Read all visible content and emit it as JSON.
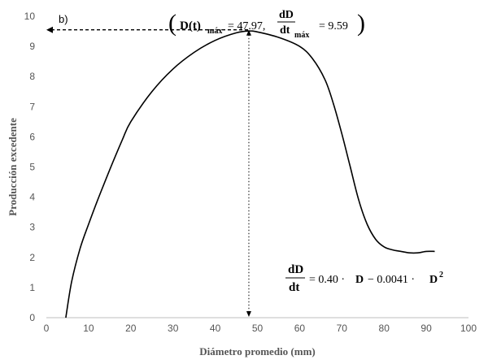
{
  "chart_data": {
    "type": "line",
    "panel_label": "b)",
    "xlabel": "Diámetro promedio (mm)",
    "ylabel": "Producción excedente",
    "xlim": [
      0,
      100
    ],
    "ylim": [
      0,
      10
    ],
    "xticks": [
      "0",
      "10",
      "20",
      "30",
      "40",
      "50",
      "60",
      "70",
      "80",
      "90",
      "100"
    ],
    "yticks": [
      "0",
      "1",
      "2",
      "3",
      "4",
      "5",
      "6",
      "7",
      "8",
      "9",
      "10"
    ],
    "grid": false,
    "legend": "none",
    "series": [
      {
        "color": "#000000",
        "x": [
          4.6,
          6,
          8,
          10,
          12,
          15,
          18,
          20,
          25,
          30,
          35,
          40,
          45,
          48,
          50,
          55,
          60,
          63,
          66,
          68,
          70,
          72,
          74,
          76,
          78,
          80,
          82,
          84,
          86,
          88,
          90,
          92
        ],
        "y": [
          0,
          1.2,
          2.3,
          3.1,
          3.85,
          4.9,
          5.9,
          6.5,
          7.5,
          8.25,
          8.8,
          9.2,
          9.45,
          9.51,
          9.48,
          9.3,
          9.0,
          8.6,
          7.9,
          7.1,
          6.1,
          5.0,
          3.9,
          3.1,
          2.6,
          2.35,
          2.25,
          2.2,
          2.15,
          2.15,
          2.2,
          2.2
        ]
      }
    ],
    "annotations": {
      "max_open": "(",
      "max_d": "D(t)",
      "max_d_sub": "máx",
      "max_eq": "= 47.97,",
      "max_frac_num": "dD",
      "max_frac_den": "dt",
      "max_frac_sub": "máx",
      "max_val": "= 9.59",
      "max_close": ")",
      "eq_num": "dD",
      "eq_den": "dt",
      "eq_rhs_a": "= 0.40 ·",
      "eq_rhs_d": "D",
      "eq_rhs_b": "− 0.0041 ·",
      "eq_rhs_d2": "D",
      "eq_rhs_exp": "2"
    },
    "reference_point": {
      "x": 47.97,
      "y": 9.59
    }
  }
}
